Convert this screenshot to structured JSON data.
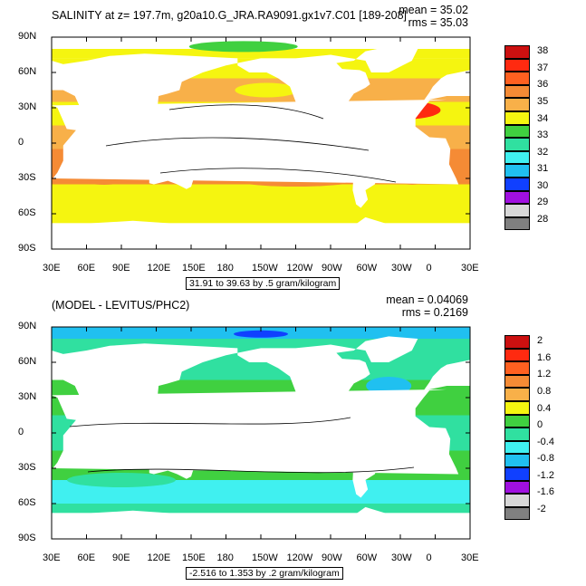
{
  "chart_data": [
    {
      "type": "heatmap",
      "title": "SALINITY at z= 197.7m, g20a10.G_JRA.RA9091.gx1v7.C01 [189-208]",
      "mean_label": "mean = 35.02",
      "rms_label": "rms = 35.03",
      "info_label": "31.91 to 39.63 by .5 gram/kilogram",
      "x_ticks": [
        "30E",
        "60E",
        "90E",
        "120E",
        "150E",
        "180",
        "150W",
        "120W",
        "90W",
        "60W",
        "30W",
        "0",
        "30E"
      ],
      "y_ticks": [
        "90N",
        "60N",
        "30N",
        "0",
        "30S",
        "60S",
        "90S"
      ],
      "colorbar_labels": [
        "38",
        "37",
        "36",
        "35",
        "34",
        "33",
        "32",
        "31",
        "30",
        "29",
        "28"
      ],
      "colors": [
        "#cc1010",
        "#ff2a10",
        "#ff5a20",
        "#f57c2a",
        "#f4a040",
        "#f7d050",
        "#f5f510",
        "#aadc20",
        "#40d040",
        "#30e0a0",
        "#40f0f0",
        "#20c0f0",
        "#2090f0",
        "#1040ff",
        "#8010e0",
        "#c020f0",
        "#d8d8d8",
        "#808080"
      ],
      "colors_count_top": 12,
      "top_colors": [
        "#cc1010",
        "#ff2a10",
        "#ff6020",
        "#f58b35",
        "#f8b049",
        "#f5e43a",
        "#f5f510",
        "#40d040",
        "#30e0a0",
        "#40f0f0",
        "#20c0f0",
        "#1040ff",
        "#a010e0",
        "#d8d8d8",
        "#808080"
      ],
      "top_box_colors": [
        "#cc1010",
        "#ff2a10",
        "#ff6020",
        "#f58b35",
        "#f8b049",
        "#f5f510",
        "#40d040",
        "#30e0a0",
        "#40f0f0",
        "#20c0f0",
        "#1040ff",
        "#a010e0",
        "#d8d8d8",
        "#808080"
      ]
    },
    {
      "type": "heatmap",
      "title": "(MODEL - LEVITUS/PHC2)",
      "mean_label": "mean = 0.04069",
      "rms_label": "rms = 0.2169",
      "info_label": "-2.516 to 1.353 by .2 gram/kilogram",
      "x_ticks": [
        "30E",
        "60E",
        "90E",
        "120E",
        "150E",
        "180",
        "150W",
        "120W",
        "90W",
        "60W",
        "30W",
        "0",
        "30E"
      ],
      "y_ticks": [
        "90N",
        "60N",
        "30N",
        "0",
        "30S",
        "60S",
        "90S"
      ],
      "colorbar_labels": [
        "2",
        "1.6",
        "1.2",
        "0.8",
        "0.4",
        "0",
        "-0.4",
        "-0.8",
        "-1.2",
        "-1.6",
        "-2"
      ],
      "bot_box_colors": [
        "#cc1010",
        "#ff2a10",
        "#ff6020",
        "#f58b35",
        "#f8b049",
        "#f5f510",
        "#40d040",
        "#30e0a0",
        "#40f0f0",
        "#20c0f0",
        "#1040ff",
        "#a010e0",
        "#d8d8d8",
        "#808080"
      ]
    }
  ]
}
